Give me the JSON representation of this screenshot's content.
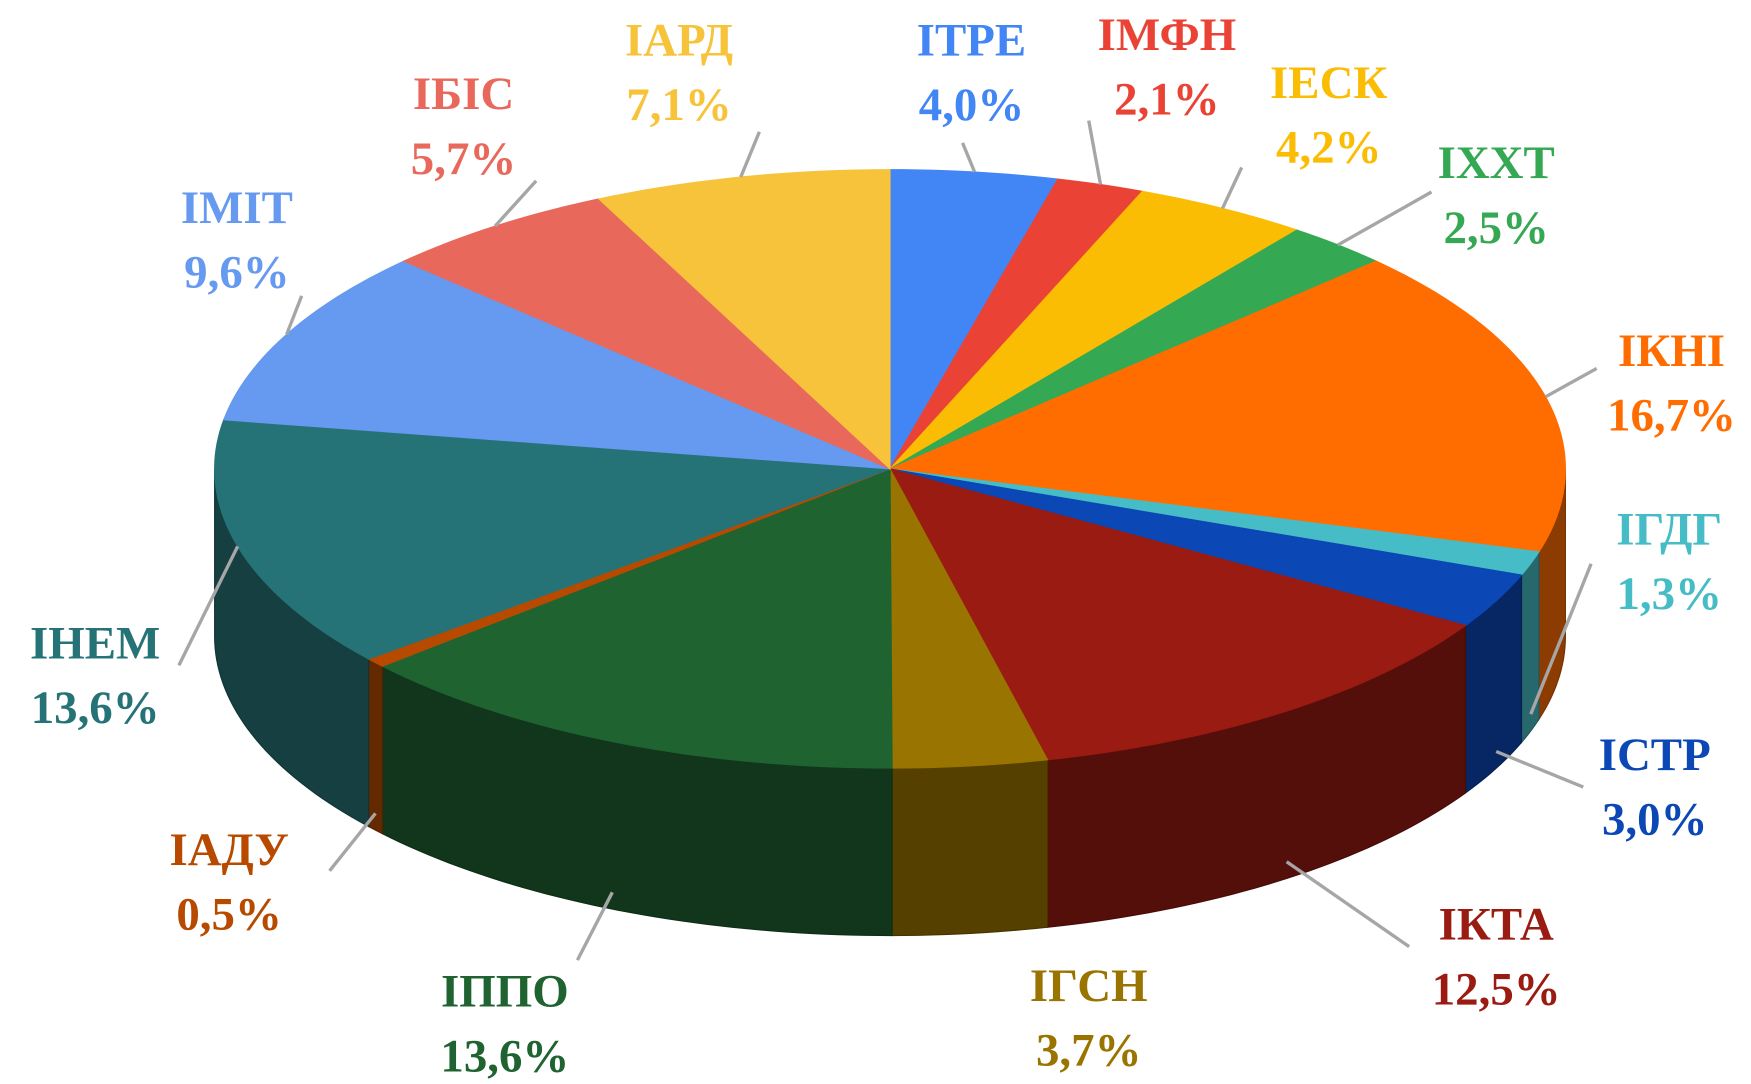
{
  "chart_data": {
    "type": "pie3d",
    "categories": [
      "ІТРЕ",
      "ІМФН",
      "ІЕСК",
      "ІХХТ",
      "ІКНІ",
      "ІГДГ",
      "ІСТР",
      "ІКТА",
      "ІГСН",
      "ІППО",
      "ІАДУ",
      "ІНЕМ",
      "ІМІТ",
      "ІБІС",
      "ІАРД"
    ],
    "values": [
      4.0,
      2.1,
      4.2,
      2.5,
      16.7,
      1.3,
      3.0,
      12.5,
      3.7,
      13.6,
      0.5,
      13.6,
      9.6,
      5.7,
      7.1
    ],
    "value_labels": [
      "4,0%",
      "2,1%",
      "4,2%",
      "2,5%",
      "16,7%",
      "1,3%",
      "3,0%",
      "12,5%",
      "3,7%",
      "13,6%",
      "0,5%",
      "13,6%",
      "9,6%",
      "5,7%",
      "7,1%"
    ],
    "colors": [
      "#4285f4",
      "#ea4335",
      "#fbbc04",
      "#34a853",
      "#ff6d01",
      "#46bdc6",
      "#0b47b5",
      "#9a1b12",
      "#9a7400",
      "#1f6331",
      "#b84a00",
      "#267377",
      "#6699f0",
      "#e8695c",
      "#f7c33a"
    ]
  }
}
